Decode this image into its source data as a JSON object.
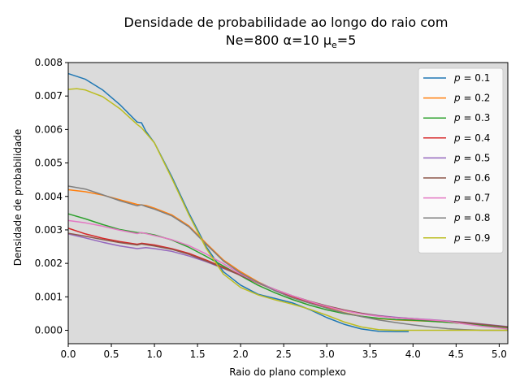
{
  "chart_data": {
    "type": "line",
    "title_line1": "Densidade de probabilidade ao longo do raio com",
    "title_line2": "Ne=800 α=10 μ",
    "title_sub": "e",
    "title_tail": "=5",
    "xlabel": "Raio do plano complexo",
    "ylabel": "Densidade de probabilidade",
    "xlim": [
      0,
      5.1
    ],
    "ylim": [
      -0.0004,
      0.008
    ],
    "xticks": [
      "0.0",
      "0.5",
      "1.0",
      "1.5",
      "2.0",
      "2.5",
      "3.0",
      "3.5",
      "4.0",
      "4.5",
      "5.0"
    ],
    "yticks": [
      "0.000",
      "0.001",
      "0.002",
      "0.003",
      "0.004",
      "0.005",
      "0.006",
      "0.007",
      "0.008"
    ],
    "background": "#dbdbdb",
    "legend_position": "upper right",
    "series": [
      {
        "name": "p = 0.1",
        "p": "0.1",
        "color": "#1f77b4",
        "x": [
          0,
          0.2,
          0.4,
          0.6,
          0.8,
          0.85,
          0.9,
          1.0,
          1.2,
          1.4,
          1.6,
          1.8,
          2.0,
          2.2,
          2.4,
          2.6,
          2.8,
          3.0,
          3.2,
          3.4,
          3.6,
          3.8,
          3.95
        ],
        "y": [
          0.00767,
          0.0075,
          0.00718,
          0.00674,
          0.00622,
          0.0062,
          0.00595,
          0.0056,
          0.0046,
          0.0035,
          0.0025,
          0.00175,
          0.00135,
          0.00108,
          0.00095,
          0.00082,
          0.00062,
          0.00038,
          0.00018,
          4e-05,
          -3e-05,
          -4e-05,
          -4e-05
        ]
      },
      {
        "name": "p = 0.2",
        "p": "0.2",
        "color": "#ff7f0e",
        "x": [
          0,
          0.2,
          0.4,
          0.6,
          0.8,
          0.9,
          1.0,
          1.2,
          1.4,
          1.6,
          1.8,
          2.0,
          2.2,
          2.4,
          2.6,
          2.8,
          3.0,
          3.2,
          3.4,
          3.6,
          3.8,
          4.0,
          4.2,
          4.4,
          4.6,
          4.8,
          5.1
        ],
        "y": [
          0.0042,
          0.00414,
          0.00404,
          0.0039,
          0.00376,
          0.00373,
          0.00365,
          0.00345,
          0.00312,
          0.0026,
          0.0021,
          0.00175,
          0.00145,
          0.0012,
          0.001,
          0.00083,
          0.00067,
          0.00053,
          0.00042,
          0.00035,
          0.00031,
          0.00029,
          0.00027,
          0.00024,
          0.0002,
          0.00014,
          5e-05
        ]
      },
      {
        "name": "p = 0.3",
        "p": "0.3",
        "color": "#2ca02c",
        "x": [
          0,
          0.2,
          0.4,
          0.6,
          0.8,
          0.9,
          1.0,
          1.2,
          1.4,
          1.6,
          1.8,
          2.0,
          2.2,
          2.4,
          2.6,
          2.8,
          3.0,
          3.2,
          3.4,
          3.6,
          3.8,
          4.0,
          4.2,
          4.4,
          4.6,
          4.8,
          5.1
        ],
        "y": [
          0.00348,
          0.00333,
          0.00316,
          0.00301,
          0.00292,
          0.0029,
          0.00285,
          0.0027,
          0.00248,
          0.00221,
          0.00192,
          0.00163,
          0.00135,
          0.00112,
          0.00092,
          0.00075,
          0.00061,
          0.0005,
          0.00042,
          0.00036,
          0.00032,
          0.0003,
          0.00027,
          0.00024,
          0.0002,
          0.00015,
          8e-05
        ]
      },
      {
        "name": "p = 0.4",
        "p": "0.4",
        "color": "#d62728",
        "x": [
          0,
          0.2,
          0.4,
          0.6,
          0.8,
          0.85,
          1.0,
          1.2,
          1.4,
          1.6,
          1.8,
          2.0,
          2.2,
          2.4,
          2.6,
          2.8,
          3.0,
          3.2,
          3.4,
          3.6,
          3.8,
          4.0,
          4.2,
          4.4,
          4.6,
          4.8,
          5.1
        ],
        "y": [
          0.00305,
          0.00288,
          0.00275,
          0.00265,
          0.00257,
          0.0026,
          0.00255,
          0.00244,
          0.0023,
          0.0021,
          0.00188,
          0.00165,
          0.00141,
          0.0012,
          0.00101,
          0.00084,
          0.0007,
          0.00059,
          0.0005,
          0.00043,
          0.00038,
          0.00035,
          0.00031,
          0.00027,
          0.00023,
          0.00018,
          0.0001
        ]
      },
      {
        "name": "p = 0.5",
        "p": "0.5",
        "color": "#9467bd",
        "x": [
          0,
          0.2,
          0.4,
          0.6,
          0.8,
          0.9,
          1.0,
          1.2,
          1.4,
          1.6,
          1.8,
          2.0,
          2.2,
          2.4,
          2.6,
          2.8,
          3.0,
          3.2,
          3.4,
          3.6,
          3.8,
          4.0,
          4.2,
          4.4,
          4.6,
          4.8,
          5.1
        ],
        "y": [
          0.00288,
          0.00276,
          0.00263,
          0.00252,
          0.00244,
          0.00247,
          0.00244,
          0.00236,
          0.00222,
          0.00205,
          0.00185,
          0.00164,
          0.00143,
          0.00122,
          0.00103,
          0.00086,
          0.00072,
          0.0006,
          0.00051,
          0.00044,
          0.00039,
          0.00035,
          0.00032,
          0.00028,
          0.00024,
          0.00019,
          0.00011
        ]
      },
      {
        "name": "p = 0.6",
        "p": "0.6",
        "color": "#8c564b",
        "x": [
          0,
          0.2,
          0.4,
          0.6,
          0.8,
          0.85,
          0.9,
          1.0,
          1.2,
          1.4,
          1.6,
          1.8,
          2.0,
          2.2,
          2.4,
          2.6,
          2.8,
          3.0,
          3.2,
          3.4,
          3.6,
          3.8,
          4.0,
          4.2,
          4.4,
          4.6,
          4.8,
          5.1
        ],
        "y": [
          0.0029,
          0.00281,
          0.00271,
          0.00262,
          0.00255,
          0.00258,
          0.00256,
          0.00252,
          0.00242,
          0.00227,
          0.00207,
          0.00186,
          0.00164,
          0.00142,
          0.00122,
          0.00103,
          0.00087,
          0.00073,
          0.00061,
          0.00051,
          0.00043,
          0.00037,
          0.00033,
          0.0003,
          0.00027,
          0.00023,
          0.00018,
          0.0001
        ]
      },
      {
        "name": "p = 0.7",
        "p": "0.7",
        "color": "#e377c2",
        "x": [
          0,
          0.2,
          0.4,
          0.6,
          0.8,
          0.85,
          1.0,
          1.2,
          1.4,
          1.6,
          1.8,
          2.0,
          2.2,
          2.4,
          2.6,
          2.8,
          3.0,
          3.2,
          3.4,
          3.6,
          3.8,
          4.0,
          4.2,
          4.4,
          4.6,
          4.8,
          5.1
        ],
        "y": [
          0.00328,
          0.00321,
          0.00311,
          0.00299,
          0.00289,
          0.00292,
          0.00283,
          0.00271,
          0.00253,
          0.00228,
          0.00199,
          0.00168,
          0.00142,
          0.00122,
          0.00103,
          0.00086,
          0.00071,
          0.00059,
          0.00049,
          0.00042,
          0.00037,
          0.00034,
          0.00031,
          0.00027,
          0.00019,
          0.00012,
          4e-05
        ]
      },
      {
        "name": "p = 0.8",
        "p": "0.8",
        "color": "#7f7f7f",
        "x": [
          0,
          0.2,
          0.4,
          0.6,
          0.8,
          0.85,
          0.9,
          1.0,
          1.2,
          1.4,
          1.6,
          1.8,
          2.0,
          2.2,
          2.4,
          2.6,
          2.8,
          3.0,
          3.2,
          3.4,
          3.6,
          3.8,
          4.0,
          4.2,
          4.4,
          4.6,
          4.8,
          5.1
        ],
        "y": [
          0.00431,
          0.00422,
          0.00405,
          0.00387,
          0.00372,
          0.00375,
          0.0037,
          0.00362,
          0.00342,
          0.00309,
          0.00257,
          0.00207,
          0.00171,
          0.00143,
          0.00118,
          0.00097,
          0.00081,
          0.00066,
          0.00052,
          0.00041,
          0.00031,
          0.00023,
          0.00016,
          0.0001,
          5e-05,
          2e-05,
          0.0,
          0.0
        ]
      },
      {
        "name": "p = 0.9",
        "p": "0.9",
        "color": "#bcbd22",
        "x": [
          0,
          0.1,
          0.2,
          0.4,
          0.6,
          0.8,
          0.85,
          1.0,
          1.2,
          1.4,
          1.6,
          1.8,
          2.0,
          2.2,
          2.4,
          2.6,
          2.8,
          3.0,
          3.2,
          3.4,
          3.6,
          3.8,
          4.0,
          4.2,
          4.4,
          4.6,
          4.8,
          5.1
        ],
        "y": [
          0.0072,
          0.00722,
          0.00718,
          0.00698,
          0.00662,
          0.00615,
          0.00605,
          0.0056,
          0.00455,
          0.00345,
          0.00245,
          0.00168,
          0.00128,
          0.00106,
          0.00091,
          0.00078,
          0.00063,
          0.00045,
          0.00025,
          0.0001,
          2e-05,
          0.0,
          0.0,
          0.0,
          0.0,
          0.0,
          0.0,
          0.0
        ]
      }
    ]
  }
}
